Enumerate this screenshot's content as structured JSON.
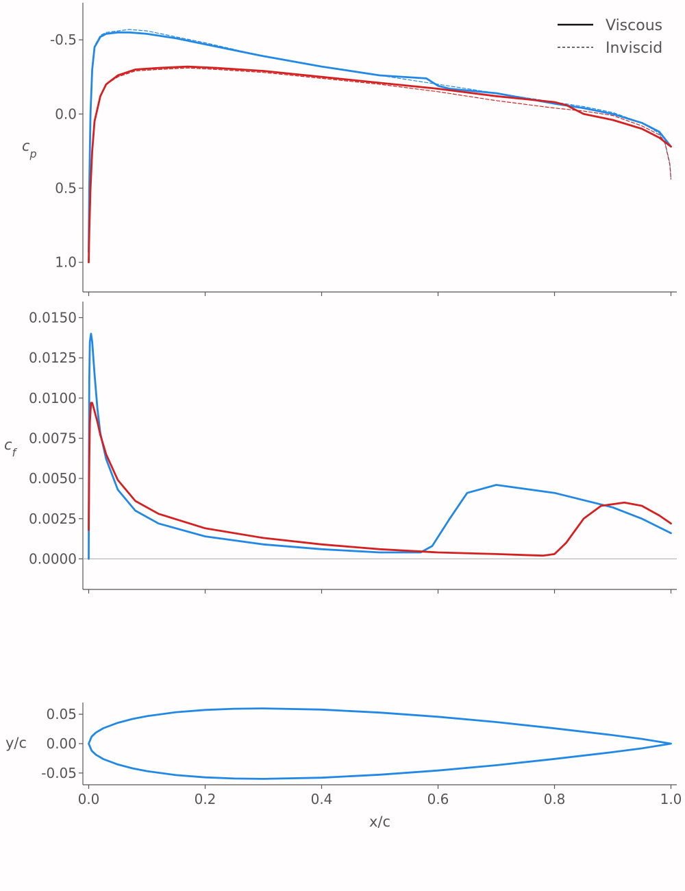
{
  "colors": {
    "blue": "#2288e6",
    "red": "#d42020",
    "zero_line": "#aaaaaa",
    "axis": "#555555",
    "legend_line": "#111111"
  },
  "legend": {
    "placement": "top-right",
    "viscous": "Viscous",
    "inviscid": "Inviscid"
  },
  "chart_data": [
    {
      "type": "line",
      "ylabel": "c_p",
      "ylim": [
        1.2,
        -0.75
      ],
      "y_inverted": true,
      "xlim": [
        -0.01,
        1.01
      ],
      "yticks": [
        -0.5,
        0.0,
        0.5,
        1.0
      ],
      "ytick_labels": [
        "-0.5",
        "0.0",
        "0.5",
        "1.0"
      ],
      "series": [
        {
          "color": "blue",
          "style": "solid",
          "x": [
            0.0,
            0.001,
            0.003,
            0.006,
            0.01,
            0.02,
            0.03,
            0.05,
            0.07,
            0.1,
            0.15,
            0.2,
            0.3,
            0.4,
            0.5,
            0.58,
            0.6,
            0.62,
            0.7,
            0.8,
            0.85,
            0.9,
            0.95,
            0.98,
            1.0
          ],
          "y": [
            0.93,
            0.5,
            0.0,
            -0.3,
            -0.45,
            -0.52,
            -0.54,
            -0.55,
            -0.55,
            -0.54,
            -0.51,
            -0.47,
            -0.39,
            -0.32,
            -0.26,
            -0.24,
            -0.19,
            -0.17,
            -0.14,
            -0.07,
            -0.04,
            0.0,
            0.06,
            0.12,
            0.22
          ]
        },
        {
          "color": "blue",
          "style": "dashed",
          "x": [
            0.0,
            0.001,
            0.003,
            0.006,
            0.01,
            0.02,
            0.03,
            0.05,
            0.07,
            0.1,
            0.15,
            0.2,
            0.3,
            0.4,
            0.5,
            0.6,
            0.7,
            0.8,
            0.85,
            0.9,
            0.95,
            0.98,
            0.99,
            0.998,
            1.0
          ],
          "y": [
            0.93,
            0.5,
            0.0,
            -0.32,
            -0.46,
            -0.53,
            -0.55,
            -0.56,
            -0.57,
            -0.56,
            -0.52,
            -0.48,
            -0.39,
            -0.32,
            -0.26,
            -0.2,
            -0.14,
            -0.08,
            -0.05,
            -0.01,
            0.06,
            0.13,
            0.2,
            0.33,
            0.44
          ]
        },
        {
          "color": "red",
          "style": "solid",
          "x": [
            0.0,
            0.001,
            0.003,
            0.006,
            0.01,
            0.02,
            0.03,
            0.05,
            0.08,
            0.12,
            0.17,
            0.22,
            0.3,
            0.4,
            0.5,
            0.6,
            0.7,
            0.8,
            0.82,
            0.85,
            0.9,
            0.95,
            0.98,
            1.0
          ],
          "y": [
            1.0,
            0.8,
            0.5,
            0.25,
            0.05,
            -0.12,
            -0.2,
            -0.26,
            -0.3,
            -0.31,
            -0.32,
            -0.31,
            -0.29,
            -0.25,
            -0.21,
            -0.17,
            -0.12,
            -0.08,
            -0.06,
            0.0,
            0.04,
            0.1,
            0.16,
            0.22
          ]
        },
        {
          "color": "red",
          "style": "dashed",
          "x": [
            0.0,
            0.001,
            0.003,
            0.006,
            0.01,
            0.02,
            0.03,
            0.05,
            0.08,
            0.12,
            0.17,
            0.22,
            0.3,
            0.4,
            0.5,
            0.6,
            0.7,
            0.8,
            0.85,
            0.9,
            0.95,
            0.98,
            0.99,
            0.998,
            1.0
          ],
          "y": [
            1.0,
            0.8,
            0.5,
            0.25,
            0.05,
            -0.12,
            -0.2,
            -0.25,
            -0.29,
            -0.3,
            -0.31,
            -0.3,
            -0.28,
            -0.24,
            -0.2,
            -0.15,
            -0.09,
            -0.04,
            -0.02,
            0.01,
            0.08,
            0.14,
            0.2,
            0.34,
            0.44
          ]
        }
      ]
    },
    {
      "type": "line",
      "ylabel": "c_f",
      "ylim": [
        -0.0019,
        0.016
      ],
      "xlim": [
        -0.01,
        1.01
      ],
      "yticks": [
        0.0,
        0.0025,
        0.005,
        0.0075,
        0.01,
        0.0125,
        0.015
      ],
      "ytick_labels": [
        "0.0000",
        "0.0025",
        "0.0050",
        "0.0075",
        "0.0100",
        "0.0125",
        "0.0150"
      ],
      "zero_line": true,
      "series": [
        {
          "color": "blue",
          "style": "solid",
          "x": [
            0.0,
            0.0005,
            0.001,
            0.002,
            0.004,
            0.006,
            0.01,
            0.015,
            0.02,
            0.03,
            0.05,
            0.08,
            0.12,
            0.2,
            0.3,
            0.4,
            0.5,
            0.57,
            0.59,
            0.62,
            0.65,
            0.7,
            0.8,
            0.9,
            0.95,
            1.0
          ],
          "y": [
            0.0,
            0.006,
            0.011,
            0.0135,
            0.014,
            0.0135,
            0.0115,
            0.0093,
            0.0078,
            0.0062,
            0.0043,
            0.003,
            0.0022,
            0.0014,
            0.0009,
            0.0006,
            0.0004,
            0.0004,
            0.0008,
            0.0025,
            0.0041,
            0.0046,
            0.0041,
            0.0032,
            0.0025,
            0.0016
          ]
        },
        {
          "color": "red",
          "style": "solid",
          "x": [
            0.0,
            0.001,
            0.002,
            0.004,
            0.006,
            0.01,
            0.015,
            0.02,
            0.03,
            0.05,
            0.08,
            0.12,
            0.2,
            0.3,
            0.4,
            0.5,
            0.6,
            0.7,
            0.78,
            0.8,
            0.82,
            0.85,
            0.88,
            0.92,
            0.95,
            0.98,
            1.0
          ],
          "y": [
            0.0018,
            0.006,
            0.0085,
            0.0097,
            0.0097,
            0.0092,
            0.0085,
            0.0077,
            0.0065,
            0.0049,
            0.0036,
            0.0028,
            0.0019,
            0.0013,
            0.0009,
            0.0006,
            0.0004,
            0.0003,
            0.0002,
            0.0003,
            0.001,
            0.0025,
            0.0033,
            0.0035,
            0.0033,
            0.0027,
            0.0022
          ]
        }
      ]
    },
    {
      "type": "line",
      "xlabel": "x/c",
      "ylabel": "y/c",
      "ylim": [
        -0.07,
        0.07
      ],
      "xlim": [
        -0.01,
        1.01
      ],
      "yticks": [
        -0.05,
        0.0,
        0.05
      ],
      "ytick_labels": [
        "-0.05",
        "0.00",
        "0.05"
      ],
      "xticks": [
        0.0,
        0.2,
        0.4,
        0.6,
        0.8,
        1.0
      ],
      "xtick_labels": [
        "0.0",
        "0.2",
        "0.4",
        "0.6",
        "0.8",
        "1.0"
      ],
      "series": [
        {
          "color": "blue",
          "style": "solid",
          "x": [
            1.0,
            0.95,
            0.9,
            0.8,
            0.7,
            0.6,
            0.5,
            0.4,
            0.3,
            0.25,
            0.2,
            0.15,
            0.1,
            0.075,
            0.05,
            0.025,
            0.0125,
            0.005,
            0.0,
            0.005,
            0.0125,
            0.025,
            0.05,
            0.075,
            0.1,
            0.15,
            0.2,
            0.25,
            0.3,
            0.4,
            0.5,
            0.6,
            0.7,
            0.8,
            0.9,
            0.95,
            1.0
          ],
          "y": [
            0.0,
            0.0081,
            0.0145,
            0.026,
            0.0367,
            0.0457,
            0.0529,
            0.058,
            0.06,
            0.0594,
            0.0574,
            0.0536,
            0.0468,
            0.042,
            0.0355,
            0.0262,
            0.0189,
            0.012,
            0.0,
            -0.012,
            -0.0189,
            -0.0262,
            -0.0355,
            -0.042,
            -0.0468,
            -0.0536,
            -0.0574,
            -0.0594,
            -0.06,
            -0.058,
            -0.0529,
            -0.0457,
            -0.0367,
            -0.026,
            -0.0145,
            -0.0081,
            0.0
          ]
        }
      ]
    }
  ]
}
